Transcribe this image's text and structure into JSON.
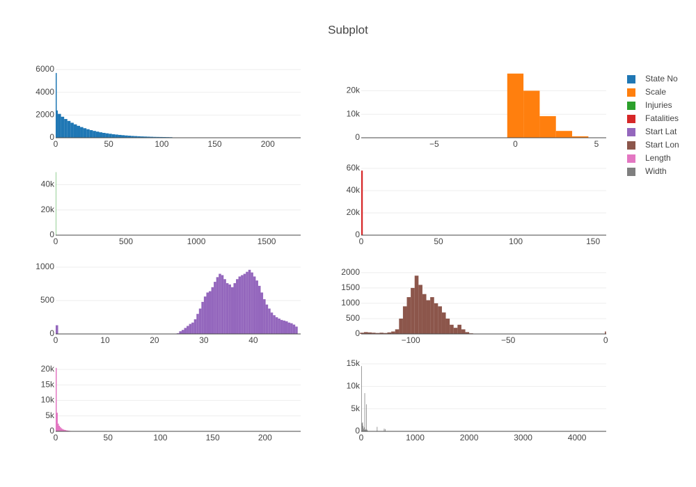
{
  "title": "Subplot",
  "chart_data": [
    {
      "type": "histogram",
      "name": "State No",
      "color": "#1f77b4",
      "bins": [
        0,
        1,
        2,
        5,
        8,
        11,
        14,
        17,
        20,
        23,
        26,
        29,
        32,
        35,
        38,
        41,
        44,
        47,
        50,
        53,
        56,
        59,
        62,
        65,
        68,
        71,
        74,
        77,
        80,
        83,
        86,
        89,
        92,
        95,
        98,
        101,
        104,
        107,
        110
      ],
      "counts": [
        5700,
        2400,
        2100,
        1850,
        1650,
        1480,
        1320,
        1180,
        1050,
        940,
        840,
        750,
        670,
        600,
        540,
        480,
        430,
        390,
        350,
        310,
        280,
        250,
        225,
        200,
        180,
        160,
        145,
        130,
        115,
        105,
        95,
        85,
        75,
        70,
        65,
        60,
        55,
        50
      ],
      "xlim": [
        0,
        231
      ],
      "ylim": [
        0,
        6000
      ],
      "xticks": [
        0,
        50,
        100,
        150,
        200
      ],
      "yticks": [
        0,
        2000,
        4000,
        6000
      ]
    },
    {
      "type": "histogram",
      "name": "Scale",
      "color": "#ff7f0e",
      "bins": [
        -0.5,
        0.5,
        1.5,
        2.5,
        3.5,
        4.5
      ],
      "counts": [
        27300,
        20000,
        9200,
        2900,
        600
      ],
      "xlim": [
        -9.5,
        5.6
      ],
      "ylim": [
        0,
        29000
      ],
      "xticks": [
        {
          "value": -5,
          "label": "−5"
        },
        0,
        5
      ],
      "yticks": [
        0,
        {
          "value": 10000,
          "label": "10k"
        },
        {
          "value": 20000,
          "label": "20k"
        }
      ]
    },
    {
      "type": "histogram",
      "name": "Injuries",
      "color": "#2ca02c",
      "bins": [
        0,
        1
      ],
      "counts": [
        50000
      ],
      "xlim": [
        0,
        1742
      ],
      "ylim": [
        0,
        53000
      ],
      "xticks": [
        0,
        500,
        1000,
        1500
      ],
      "yticks": [
        0,
        {
          "value": 20000,
          "label": "20k"
        },
        {
          "value": 40000,
          "label": "40k"
        }
      ]
    },
    {
      "type": "histogram",
      "name": "Fatalities",
      "color": "#d62728",
      "bins": [
        0,
        1
      ],
      "counts": [
        58000
      ],
      "xlim": [
        0,
        158.5
      ],
      "ylim": [
        0,
        60000
      ],
      "xticks": [
        0,
        50,
        100,
        150
      ],
      "yticks": [
        0,
        {
          "value": 20000,
          "label": "20k"
        },
        {
          "value": 40000,
          "label": "40k"
        },
        {
          "value": 60000,
          "label": "60k"
        }
      ]
    },
    {
      "type": "histogram",
      "name": "Start Lat",
      "color": "#9467bd",
      "bins": [
        0,
        0.5,
        24.5,
        25,
        25.5,
        26,
        26.5,
        27,
        27.5,
        28,
        28.5,
        29,
        29.5,
        30,
        30.5,
        31,
        31.5,
        32,
        32.5,
        33,
        33.5,
        34,
        34.5,
        35,
        35.5,
        36,
        36.5,
        37,
        37.5,
        38,
        38.5,
        39,
        39.5,
        40,
        40.5,
        41,
        41.5,
        42,
        42.5,
        43,
        43.5,
        44,
        44.5,
        45,
        45.5,
        46,
        46.5,
        47,
        47.5,
        48,
        48.5,
        49
      ],
      "counts": [
        130,
        0,
        10,
        40,
        60,
        90,
        120,
        150,
        170,
        220,
        300,
        380,
        480,
        560,
        620,
        640,
        700,
        780,
        850,
        900,
        880,
        820,
        760,
        740,
        700,
        760,
        820,
        860,
        880,
        900,
        930,
        960,
        920,
        860,
        800,
        720,
        620,
        520,
        440,
        380,
        320,
        280,
        250,
        230,
        210,
        200,
        190,
        170,
        160,
        140,
        110
      ],
      "xlim": [
        0,
        49.6
      ],
      "ylim": [
        0,
        1010
      ],
      "xticks": [
        0,
        10,
        20,
        30,
        40
      ],
      "yticks": [
        0,
        500,
        1000
      ]
    },
    {
      "type": "histogram",
      "name": "Start Lon",
      "color": "#8c564b",
      "bins": [
        -126,
        -124,
        -122,
        -120,
        -118,
        -116,
        -114,
        -112,
        -110,
        -108,
        -106,
        -104,
        -102,
        -100,
        -98,
        -96,
        -94,
        -92,
        -90,
        -88,
        -86,
        -84,
        -82,
        -80,
        -78,
        -76,
        -74,
        -72,
        -70,
        -68,
        -0.4,
        0.2
      ],
      "counts": [
        40,
        60,
        50,
        40,
        30,
        40,
        30,
        50,
        80,
        150,
        500,
        900,
        1200,
        1500,
        1900,
        1600,
        1300,
        1100,
        1200,
        1000,
        900,
        700,
        500,
        300,
        200,
        300,
        150,
        60,
        20,
        0,
        80
      ],
      "xlim": [
        -125.4,
        0.3
      ],
      "ylim": [
        0,
        2200
      ],
      "xticks": [
        {
          "value": -100,
          "label": "−100"
        },
        {
          "value": -50,
          "label": "−50"
        },
        0
      ],
      "yticks": [
        0,
        500,
        1000,
        1500,
        2000
      ]
    },
    {
      "type": "histogram",
      "name": "Length",
      "color": "#e377c2",
      "bins": [
        0,
        1,
        2,
        3,
        4,
        5,
        6,
        7,
        8,
        9,
        10,
        11,
        12,
        13,
        14,
        15,
        16,
        17,
        18,
        19,
        20
      ],
      "counts": [
        20500,
        6000,
        2500,
        1800,
        1400,
        1000,
        800,
        600,
        500,
        400,
        300,
        250,
        200,
        150,
        120,
        100,
        80,
        60,
        40,
        30
      ],
      "xlim": [
        0,
        234
      ],
      "ylim": [
        0,
        21800
      ],
      "xticks": [
        0,
        50,
        100,
        150,
        200
      ],
      "yticks": [
        0,
        {
          "value": 5000,
          "label": "5k"
        },
        {
          "value": 10000,
          "label": "10k"
        },
        {
          "value": 15000,
          "label": "15k"
        },
        {
          "value": 20000,
          "label": "20k"
        }
      ]
    },
    {
      "type": "histogram",
      "name": "Width",
      "color": "#7f7f7f",
      "bins": [
        0,
        10,
        20,
        30,
        40,
        50,
        60,
        70,
        80,
        90,
        100,
        110,
        120,
        290,
        300,
        420,
        430,
        440,
        450
      ],
      "counts": [
        14500,
        1800,
        2000,
        1200,
        600,
        900,
        8500,
        300,
        500,
        6000,
        400,
        200,
        0,
        1000,
        0,
        600,
        0,
        500
      ],
      "xlim": [
        0,
        4540
      ],
      "ylim": [
        0,
        15000
      ],
      "xticks": [
        0,
        1000,
        2000,
        3000,
        4000
      ],
      "yticks": [
        0,
        {
          "value": 5000,
          "label": "5k"
        },
        {
          "value": 10000,
          "label": "10k"
        },
        {
          "value": 15000,
          "label": "15k"
        }
      ]
    }
  ]
}
